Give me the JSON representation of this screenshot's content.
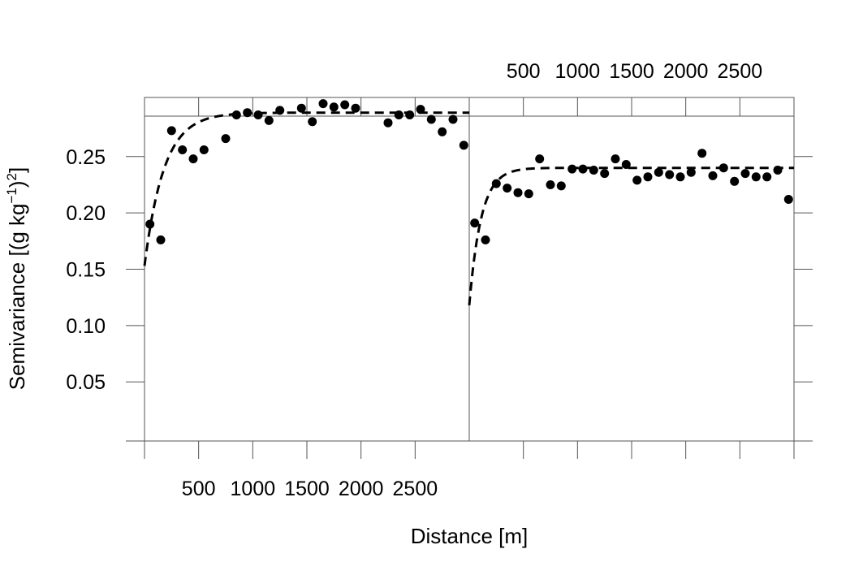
{
  "chart_data": {
    "type": "scatter",
    "xlabel": "Distance [m]",
    "ylabel": "Semivariance [(g kg⁻¹)²]",
    "ylabel_parts": {
      "base": "Semivariance [(g kg",
      "sup1": "−1",
      "mid": ")",
      "sup2": "2",
      "end": "]"
    },
    "xlim": [
      0,
      3000
    ],
    "ylim": [
      -0.0025,
      0.3025
    ],
    "x_ticks": [
      500,
      1000,
      1500,
      2000,
      2500
    ],
    "x_tick_labels": [
      "500",
      "1000",
      "1500",
      "2000",
      "2500"
    ],
    "y_ticks": [
      0.05,
      0.1,
      0.15,
      0.2,
      0.25
    ],
    "y_tick_labels": [
      "0.05",
      "0.10",
      "0.15",
      "0.20",
      "0.25"
    ],
    "panels": [
      {
        "name": "left",
        "points": {
          "x": [
            50,
            150,
            250,
            350,
            450,
            550,
            750,
            850,
            950,
            1050,
            1150,
            1250,
            1450,
            1550,
            1650,
            1750,
            1850,
            1950,
            2250,
            2350,
            2450,
            2550,
            2650,
            2750,
            2850,
            2950
          ],
          "y": [
            0.19,
            0.176,
            0.273,
            0.256,
            0.248,
            0.256,
            0.266,
            0.287,
            0.289,
            0.287,
            0.282,
            0.291,
            0.293,
            0.281,
            0.297,
            0.294,
            0.296,
            0.293,
            0.28,
            0.287,
            0.287,
            0.292,
            0.283,
            0.272,
            0.283,
            0.26
          ]
        },
        "model": {
          "type": "exponential",
          "nugget": 0.153,
          "sill": 0.289,
          "range": 180
        }
      },
      {
        "name": "right",
        "points": {
          "x": [
            50,
            150,
            250,
            350,
            450,
            550,
            650,
            750,
            850,
            950,
            1050,
            1150,
            1250,
            1350,
            1450,
            1550,
            1650,
            1750,
            1850,
            1950,
            2050,
            2150,
            2250,
            2350,
            2450,
            2550,
            2650,
            2750,
            2850,
            2950
          ],
          "y": [
            0.191,
            0.176,
            0.226,
            0.222,
            0.218,
            0.217,
            0.248,
            0.225,
            0.224,
            0.239,
            0.239,
            0.238,
            0.235,
            0.248,
            0.243,
            0.229,
            0.232,
            0.236,
            0.234,
            0.232,
            0.236,
            0.253,
            0.233,
            0.24,
            0.228,
            0.235,
            0.232,
            0.232,
            0.238,
            0.212
          ]
        },
        "model": {
          "type": "exponential",
          "nugget": 0.118,
          "sill": 0.24,
          "range": 110
        }
      }
    ],
    "point_style": "filled-circle",
    "line_style": "dashed"
  }
}
